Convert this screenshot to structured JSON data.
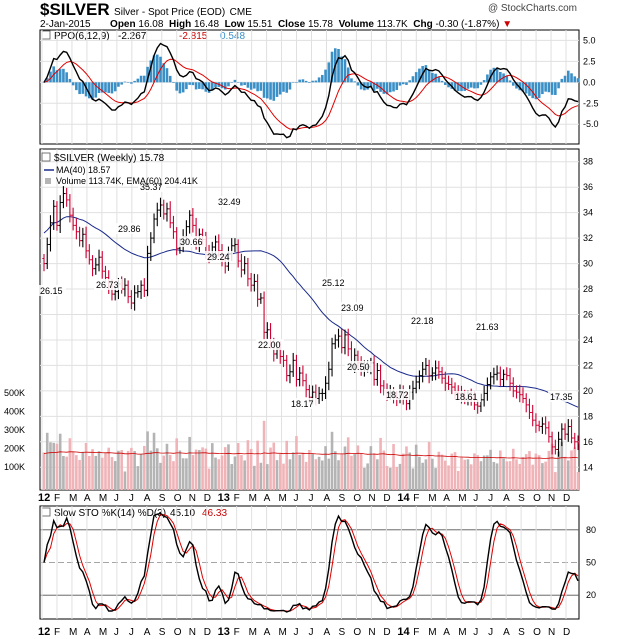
{
  "header": {
    "symbol": "$SILVER",
    "name": "Silver - Spot Price (EOD)",
    "exchange": "CME",
    "date": "2-Jan-2015",
    "open_label": "Open",
    "open": "16.08",
    "high_label": "High",
    "high": "16.48",
    "low_label": "Low",
    "low": "15.51",
    "close_label": "Close",
    "close": "15.78",
    "volume_label": "Volume",
    "volume": "113.7K",
    "chg_label": "Chg",
    "chg": "-0.30 (-1.87%)",
    "watermark": "@ StockCharts.com"
  },
  "colors": {
    "up_bar": "#000000",
    "down_bar": "#cc0033",
    "ppo_line": "#000000",
    "signal_line": "#e00000",
    "histogram": "#3a8fc7",
    "ma_line": "#1a2a8a",
    "volume_down": "#f0b4b8",
    "volume_up": "#b4b4b4",
    "volume_ema": "#cc0000",
    "grid": "#e0e0e0"
  },
  "chart_data": {
    "type": "candlestick",
    "title": "$SILVER (Weekly) 15.78",
    "legend_ma": "MA(40) 18.57",
    "legend_volume": "Volume 113.74K, EMA(60) 204.41K",
    "x_tick_labels": [
      "12",
      "F",
      "M",
      "A",
      "M",
      "J",
      "J",
      "A",
      "S",
      "O",
      "N",
      "D",
      "13",
      "F",
      "M",
      "A",
      "M",
      "J",
      "J",
      "A",
      "S",
      "O",
      "N",
      "D",
      "14",
      "F",
      "M",
      "A",
      "M",
      "J",
      "J",
      "A",
      "S",
      "O",
      "N",
      "D"
    ],
    "price": {
      "ylim": [
        13,
        39
      ],
      "y_ticks": [
        14,
        16,
        18,
        20,
        22,
        24,
        26,
        28,
        30,
        32,
        34,
        36,
        38
      ],
      "weekly_close": [
        30.0,
        31.5,
        33.2,
        34.5,
        33.0,
        34.8,
        35.5,
        35.0,
        33.8,
        33.0,
        32.5,
        31.8,
        32.3,
        31.0,
        30.3,
        29.6,
        29.9,
        30.5,
        29.4,
        28.9,
        28.2,
        27.6,
        27.8,
        28.4,
        28.0,
        28.3,
        27.4,
        26.9,
        27.7,
        27.8,
        28.3,
        27.9,
        30.8,
        32.0,
        33.5,
        34.2,
        34.6,
        33.9,
        34.3,
        33.2,
        32.5,
        31.2,
        31.5,
        32.1,
        32.9,
        33.8,
        33.0,
        31.5,
        32.3,
        31.9,
        30.9,
        30.6,
        31.3,
        31.7,
        31.0,
        30.3,
        29.8,
        30.8,
        31.4,
        31.5,
        30.2,
        29.5,
        30.0,
        28.8,
        28.3,
        28.6,
        27.2,
        27.3,
        24.6,
        24.8,
        23.8,
        22.9,
        23.3,
        22.7,
        22.4,
        21.2,
        21.5,
        22.4,
        20.9,
        21.4,
        20.8,
        20.1,
        19.5,
        19.9,
        19.4,
        19.8,
        19.8,
        20.6,
        21.7,
        23.7,
        24.0,
        24.3,
        23.4,
        24.4,
        23.3,
        22.0,
        22.8,
        22.2,
        21.7,
        21.8,
        21.9,
        22.2,
        20.9,
        21.6,
        20.4,
        20.0,
        19.8,
        19.9,
        19.5,
        19.4,
        19.9,
        19.5,
        19.0,
        19.9,
        20.2,
        20.7,
        21.2,
        21.7,
        22.0,
        21.2,
        21.4,
        21.8,
        21.5,
        21.0,
        20.6,
        20.5,
        20.3,
        19.9,
        19.8,
        19.6,
        19.4,
        19.6,
        19.4,
        18.9,
        18.8,
        19.3,
        19.8,
        20.5,
        21.1,
        21.3,
        21.4,
        20.9,
        21.3,
        21.2,
        20.6,
        20.0,
        19.9,
        19.7,
        19.4,
        18.9,
        18.3,
        17.7,
        17.3,
        17.2,
        17.4,
        17.1,
        16.4,
        15.6,
        15.4,
        16.2,
        17.0,
        16.6,
        17.2,
        16.3,
        16.0,
        15.9
      ],
      "ma40": {
        "start": 30.0,
        "end": 18.57
      },
      "annotations": [
        {
          "label": "26.15",
          "price": 26.15
        },
        {
          "label": "29.86",
          "price": 29.86
        },
        {
          "label": "26.73",
          "price": 26.73
        },
        {
          "label": "35.37",
          "price": 35.37
        },
        {
          "label": "30.66",
          "price": 30.66
        },
        {
          "label": "32.49",
          "price": 32.49
        },
        {
          "label": "29.24",
          "price": 29.24
        },
        {
          "label": "22.00",
          "price": 22.0
        },
        {
          "label": "18.17",
          "price": 18.17
        },
        {
          "label": "25.12",
          "price": 25.12
        },
        {
          "label": "23.09",
          "price": 23.09
        },
        {
          "label": "20.50",
          "price": 20.5
        },
        {
          "label": "18.72",
          "price": 18.72
        },
        {
          "label": "22.18",
          "price": 22.18
        },
        {
          "label": "18.61",
          "price": 18.61
        },
        {
          "label": "21.63",
          "price": 21.63
        },
        {
          "label": "17.35",
          "price": 17.35
        }
      ]
    },
    "volume": {
      "y_ticks": [
        "100K",
        "200K",
        "300K",
        "400K",
        "500K"
      ],
      "ema60_end": "204.41K"
    },
    "ppo": {
      "title": "PPO(6,12,9)",
      "ppo_value": "-2.267",
      "signal_value": "-2.815",
      "hist_value": "0.548",
      "ylim": [
        -7,
        6
      ],
      "y_ticks": [
        "5.0",
        "2.5",
        "0.0",
        "-2.5",
        "-5.0"
      ]
    },
    "stochastic": {
      "title": "Slow STO %K(14) %D(3)",
      "k_value": "45.10",
      "d_value": "46.33",
      "ylim": [
        0,
        100
      ],
      "y_ticks": [
        "80",
        "50",
        "20"
      ]
    }
  }
}
